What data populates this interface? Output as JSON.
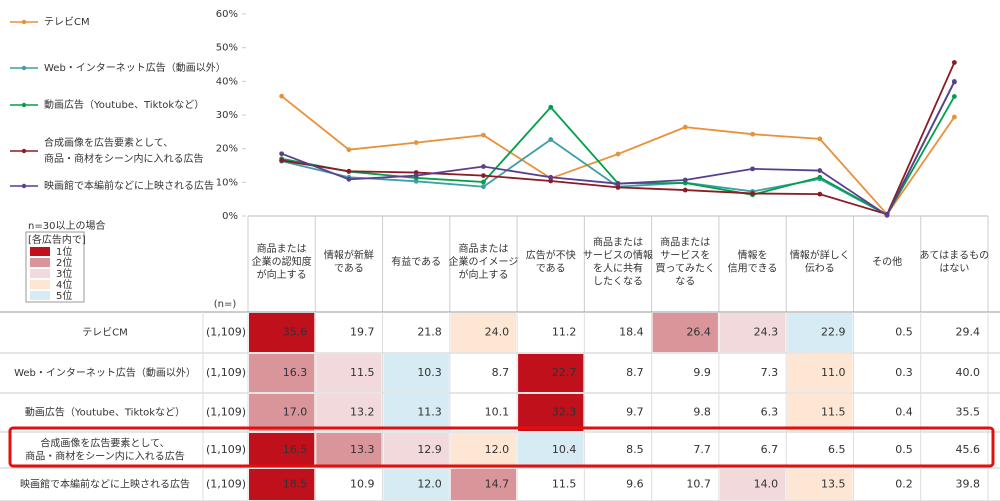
{
  "chart_data": {
    "type": "line",
    "categories": [
      "商品または\n企業の認知度\nが向上する",
      "情報が新鮮\nである",
      "有益である",
      "商品または\n企業のイメージ\nが向上する",
      "広告が不快\nである",
      "商品または\nサービスの情報\nを人に共有\nしたくなる",
      "商品または\nサービスを\n買ってみたく\nなる",
      "情報を\n信用できる",
      "情報が詳しく\n伝わる",
      "その他",
      "あてはまるもの\nはない"
    ],
    "ylim": [
      0,
      60
    ],
    "yticks": [
      {
        "value": 0,
        "label": "0%"
      },
      {
        "value": 10,
        "label": "10%"
      },
      {
        "value": 20,
        "label": "20%"
      },
      {
        "value": 30,
        "label": "30%"
      },
      {
        "value": 40,
        "label": "40%"
      },
      {
        "value": 50,
        "label": "50%"
      },
      {
        "value": 60,
        "label": "60%"
      }
    ],
    "n_header": "(n=)",
    "series": [
      {
        "name": "テレビCM",
        "color": "#e8913a",
        "n": "(1,109)",
        "values": [
          35.6,
          19.7,
          21.8,
          24.0,
          11.2,
          18.4,
          26.4,
          24.3,
          22.9,
          0.5,
          29.4
        ],
        "value_labels": [
          "35.6",
          "19.7",
          "21.8",
          "24.0",
          "11.2",
          "18.4",
          "26.4",
          "24.3",
          "22.9",
          "0.5",
          "29.4"
        ],
        "ranks": [
          1,
          null,
          null,
          4,
          null,
          null,
          2,
          3,
          5,
          null,
          null
        ]
      },
      {
        "name": "Web・インターネット広告（動画以外）",
        "color": "#3f9ea6",
        "n": "(1,109)",
        "values": [
          16.3,
          11.5,
          10.3,
          8.7,
          22.7,
          8.7,
          9.9,
          7.3,
          11.0,
          0.3,
          40.0
        ],
        "value_labels": [
          "16.3",
          "11.5",
          "10.3",
          "8.7",
          "22.7",
          "8.7",
          "9.9",
          "7.3",
          "11.0",
          "0.3",
          "40.0"
        ],
        "ranks": [
          2,
          3,
          5,
          null,
          1,
          null,
          null,
          null,
          4,
          null,
          null
        ]
      },
      {
        "name": "動画広告（Youtube、Tiktokなど）",
        "color": "#00a04a",
        "n": "(1,109)",
        "values": [
          17.0,
          13.2,
          11.3,
          10.1,
          32.3,
          9.7,
          9.8,
          6.3,
          11.5,
          0.4,
          35.5
        ],
        "value_labels": [
          "17.0",
          "13.2",
          "11.3",
          "10.1",
          "32.3",
          "9.7",
          "9.8",
          "6.3",
          "11.5",
          "0.4",
          "35.5"
        ],
        "ranks": [
          2,
          3,
          5,
          null,
          1,
          null,
          null,
          null,
          4,
          null,
          null
        ]
      },
      {
        "name": "合成画像を広告要素として、\n商品・商材をシーン内に入れる広告",
        "color": "#8b1c24",
        "n": "(1,109)",
        "values": [
          16.5,
          13.3,
          12.9,
          12.0,
          10.4,
          8.5,
          7.7,
          6.7,
          6.5,
          0.5,
          45.6
        ],
        "value_labels": [
          "16.5",
          "13.3",
          "12.9",
          "12.0",
          "10.4",
          "8.5",
          "7.7",
          "6.7",
          "6.5",
          "0.5",
          "45.6"
        ],
        "ranks": [
          1,
          2,
          3,
          4,
          5,
          null,
          null,
          null,
          null,
          null,
          null
        ]
      },
      {
        "name": "映画館で本編前などに上映される広告",
        "color": "#5a3f8e",
        "n": "(1,109)",
        "values": [
          18.5,
          10.9,
          12.0,
          14.7,
          11.5,
          9.6,
          10.7,
          14.0,
          13.5,
          0.2,
          39.8
        ],
        "value_labels": [
          "18.5",
          "10.9",
          "12.0",
          "14.7",
          "11.5",
          "9.6",
          "10.7",
          "14.0",
          "13.5",
          "0.2",
          "39.8"
        ],
        "ranks": [
          1,
          null,
          5,
          2,
          null,
          null,
          null,
          3,
          4,
          null,
          null
        ]
      }
    ],
    "rank_legend": {
      "note": "n=30以上の場合",
      "heading": "[各広告内で]",
      "items": [
        {
          "label": "1位",
          "color": "#c0101c"
        },
        {
          "label": "2位",
          "color": "#d9959a"
        },
        {
          "label": "3位",
          "color": "#f2dadc"
        },
        {
          "label": "4位",
          "color": "#fde6d4"
        },
        {
          "label": "5位",
          "color": "#d6ebf3"
        }
      ]
    }
  }
}
